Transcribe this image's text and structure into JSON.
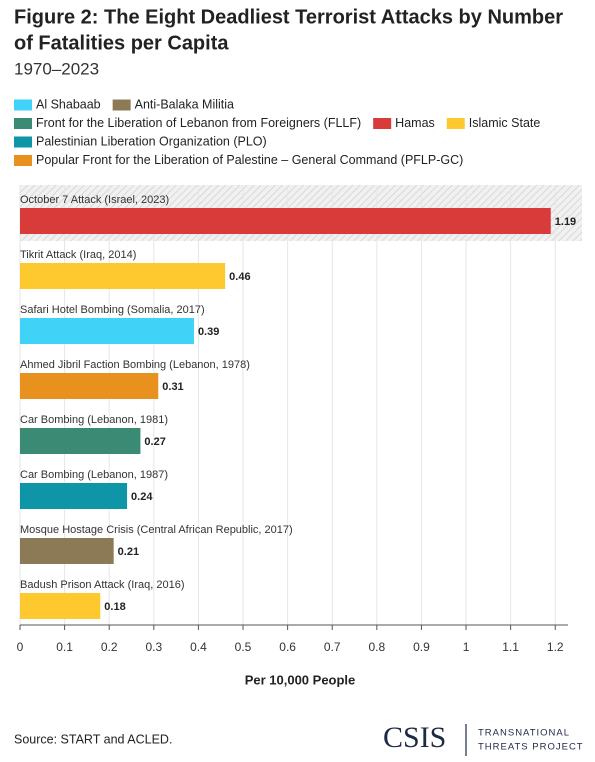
{
  "chart_data": {
    "type": "bar",
    "title": [
      "Figure 2: The Eight Deadliest Terrorist Attacks by Number",
      "of Fatalities per Capita"
    ],
    "subtitle": "1970–2023",
    "categories": [
      "October 7 Attack (Israel, 2023)",
      "Tikrit Attack (Iraq, 2014)",
      "Safari Hotel Bombing (Somalia, 2017)",
      "Ahmed Jibril Faction Bombing (Lebanon, 1978)",
      "Car Bombing (Lebanon, 1981)",
      "Car Bombing (Lebanon, 1987)",
      "Mosque Hostage Crisis (Central African Republic, 2017)",
      "Badush Prison Attack (Iraq, 2016)"
    ],
    "series": [
      {
        "name": "Al Shabaab",
        "color": "#40d3f7",
        "values": [
          null,
          null,
          0.39,
          null,
          null,
          null,
          null,
          null
        ]
      },
      {
        "name": "Anti-Balaka Militia",
        "color": "#8c7a57",
        "values": [
          null,
          null,
          null,
          null,
          null,
          null,
          0.21,
          null
        ]
      },
      {
        "name": "Front for the Liberation of Lebanon from Foreigners (FLLF)",
        "color": "#3b8a73",
        "values": [
          null,
          null,
          null,
          null,
          0.27,
          null,
          null,
          null
        ]
      },
      {
        "name": "Hamas",
        "color": "#d93b3b",
        "values": [
          1.19,
          null,
          null,
          null,
          null,
          null,
          null,
          null
        ]
      },
      {
        "name": "Islamic State",
        "color": "#fdc92f",
        "values": [
          null,
          0.46,
          null,
          null,
          null,
          null,
          null,
          0.18
        ]
      },
      {
        "name": "Palestinian Liberation Organization (PLO)",
        "color": "#0e96a8",
        "values": [
          null,
          null,
          null,
          null,
          null,
          0.24,
          null,
          null
        ]
      },
      {
        "name": "Popular Front for the Liberation of Palestine – General Command (PFLP-GC)",
        "color": "#e8911f",
        "values": [
          null,
          null,
          null,
          0.31,
          null,
          null,
          null,
          null
        ]
      }
    ],
    "xlabel": "Per 10,000 People",
    "xlim": [
      0,
      1.26
    ],
    "xticks": [
      0,
      0.1,
      0.2,
      0.3,
      0.4,
      0.5,
      0.6,
      0.7,
      0.8,
      0.9,
      1,
      1.1,
      1.2
    ],
    "grid": true,
    "source": "Source: START and ACLED.",
    "logo": {
      "name": "CSIS",
      "tagline": [
        "TRANSNATIONAL",
        "THREATS PROJECT"
      ]
    }
  }
}
